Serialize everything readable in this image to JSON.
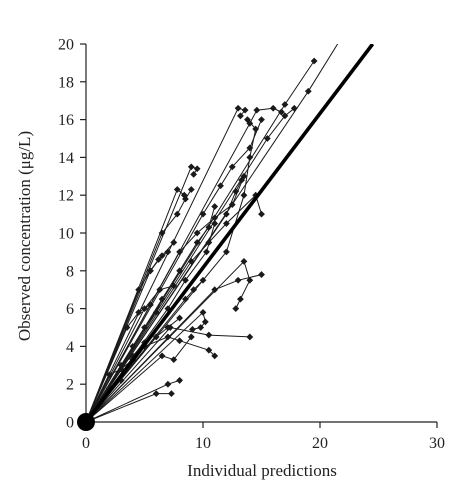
{
  "chart_data": {
    "type": "scatter",
    "title": "",
    "xlabel": "Individual predictions",
    "ylabel": "Observed concentration (μg/L)",
    "xlim": [
      0,
      30
    ],
    "ylim": [
      0,
      20
    ],
    "xticks": [
      "0",
      "10",
      "20",
      "30"
    ],
    "yticks": [
      "0",
      "2",
      "4",
      "6",
      "8",
      "10",
      "12",
      "14",
      "16",
      "18",
      "20"
    ],
    "grid": false,
    "reference_line": {
      "type": "identity",
      "x": [
        0,
        24.5
      ],
      "y": [
        0,
        20
      ]
    },
    "series": [
      {
        "x": [
          0,
          7.8,
          8.4
        ],
        "y": [
          0,
          12.3,
          12.0
        ]
      },
      {
        "x": [
          0,
          9.0,
          9.5,
          9.2
        ],
        "y": [
          0,
          13.5,
          13.4,
          13.1
        ]
      },
      {
        "x": [
          0,
          13.0,
          13.6,
          13.2
        ],
        "y": [
          0,
          16.6,
          16.5,
          16.2
        ]
      },
      {
        "x": [
          0,
          14.0,
          14.6,
          16.0,
          16.7
        ],
        "y": [
          0,
          15.8,
          16.5,
          16.6,
          16.4
        ]
      },
      {
        "x": [
          0,
          8.0,
          9.5,
          10.5,
          11.0
        ],
        "y": [
          0,
          8.0,
          9.5,
          10.3,
          11.4
        ]
      },
      {
        "x": [
          0,
          12.0,
          13.5,
          14.0,
          14.5,
          13.8
        ],
        "y": [
          0,
          9.0,
          12.0,
          14.0,
          15.5,
          16.0
        ]
      },
      {
        "x": [
          0,
          7.0,
          8.5,
          10.3,
          11.0
        ],
        "y": [
          0,
          6.0,
          7.5,
          9.0,
          10.5
        ]
      },
      {
        "x": [
          0,
          7.2,
          10.5,
          14.0
        ],
        "y": [
          0,
          5.0,
          4.6,
          4.5
        ]
      },
      {
        "x": [
          0,
          10.0,
          10.2,
          9.8,
          9.1
        ],
        "y": [
          0,
          5.8,
          5.3,
          5.0,
          4.9
        ]
      },
      {
        "x": [
          0,
          13.5,
          14.0,
          13.2,
          12.8
        ],
        "y": [
          0,
          8.5,
          7.5,
          6.5,
          6.0
        ]
      },
      {
        "x": [
          0,
          6.5,
          7.5,
          9.0
        ],
        "y": [
          0,
          3.5,
          3.3,
          4.5
        ]
      },
      {
        "x": [
          0,
          7.0,
          8.0
        ],
        "y": [
          0,
          2.0,
          2.2
        ]
      },
      {
        "x": [
          0,
          6.0,
          7.3
        ],
        "y": [
          0,
          1.5,
          1.5
        ]
      },
      {
        "x": [
          0,
          4.0,
          5.0,
          6.0,
          6.5
        ],
        "y": [
          0,
          4.0,
          5.0,
          5.8,
          6.5
        ]
      },
      {
        "x": [
          0,
          5.5,
          6.2,
          7.0
        ],
        "y": [
          0,
          8.0,
          8.6,
          9.0
        ]
      },
      {
        "x": [
          0,
          6.5,
          7.8,
          8.5,
          9.0
        ],
        "y": [
          0,
          10.0,
          11.0,
          11.8,
          12.3
        ]
      },
      {
        "x": [
          0,
          5.0,
          6.3,
          7.5
        ],
        "y": [
          0,
          6.0,
          7.0,
          7.2
        ]
      },
      {
        "x": [
          0,
          3.0,
          4.0,
          5.0
        ],
        "y": [
          0,
          3.0,
          3.5,
          4.2
        ]
      },
      {
        "x": [
          0,
          2.0,
          3.0,
          4.0
        ],
        "y": [
          0,
          2.5,
          2.8,
          3.3
        ]
      },
      {
        "x": [
          0,
          8.0,
          9.5,
          11.0,
          12.5,
          13.5
        ],
        "y": [
          0,
          9.0,
          10.0,
          10.8,
          11.5,
          13.0
        ]
      },
      {
        "x": [
          0,
          10.0,
          11.5,
          12.5,
          14.0,
          15.0
        ],
        "y": [
          0,
          11.0,
          12.5,
          13.5,
          14.5,
          16.0
        ]
      },
      {
        "x": [
          0,
          9.0,
          10.5,
          12.0,
          14.5,
          15.0
        ],
        "y": [
          0,
          8.5,
          9.5,
          10.5,
          12.0,
          11.0
        ]
      },
      {
        "x": [
          0,
          11.0,
          13.0,
          15.0
        ],
        "y": [
          0,
          7.0,
          7.5,
          7.8
        ]
      },
      {
        "x": [
          0,
          19.0,
          22.0
        ],
        "y": [
          0,
          17.5,
          20.5
        ]
      },
      {
        "x": [
          0,
          17.0,
          19.5
        ],
        "y": [
          0,
          16.8,
          19.1
        ]
      },
      {
        "x": [
          0,
          15.5,
          17.0,
          17.8
        ],
        "y": [
          0,
          15.0,
          16.2,
          16.6
        ]
      },
      {
        "x": [
          0,
          4.5,
          5.5,
          6.5,
          7.5
        ],
        "y": [
          0,
          7.0,
          8.0,
          8.8,
          9.5
        ]
      },
      {
        "x": [
          0,
          3.5,
          4.5,
          5.5
        ],
        "y": [
          0,
          5.0,
          5.8,
          6.2
        ]
      },
      {
        "x": [
          0,
          6.0,
          7.0,
          8.0
        ],
        "y": [
          0,
          4.5,
          5.0,
          5.5
        ]
      },
      {
        "x": [
          0,
          8.5,
          9.2,
          10.0
        ],
        "y": [
          0,
          6.5,
          7.0,
          7.5
        ]
      },
      {
        "x": [
          0,
          12.0,
          12.8,
          13.3
        ],
        "y": [
          0,
          11.0,
          12.2,
          12.8
        ]
      },
      {
        "x": [
          0,
          1.0,
          2.0,
          3.0
        ],
        "y": [
          0,
          1.0,
          1.8,
          2.2
        ]
      },
      {
        "x": [
          0,
          5.0,
          7.0,
          8.0,
          10.5,
          11.0
        ],
        "y": [
          0,
          4.0,
          4.5,
          4.3,
          3.8,
          3.5
        ]
      }
    ]
  }
}
